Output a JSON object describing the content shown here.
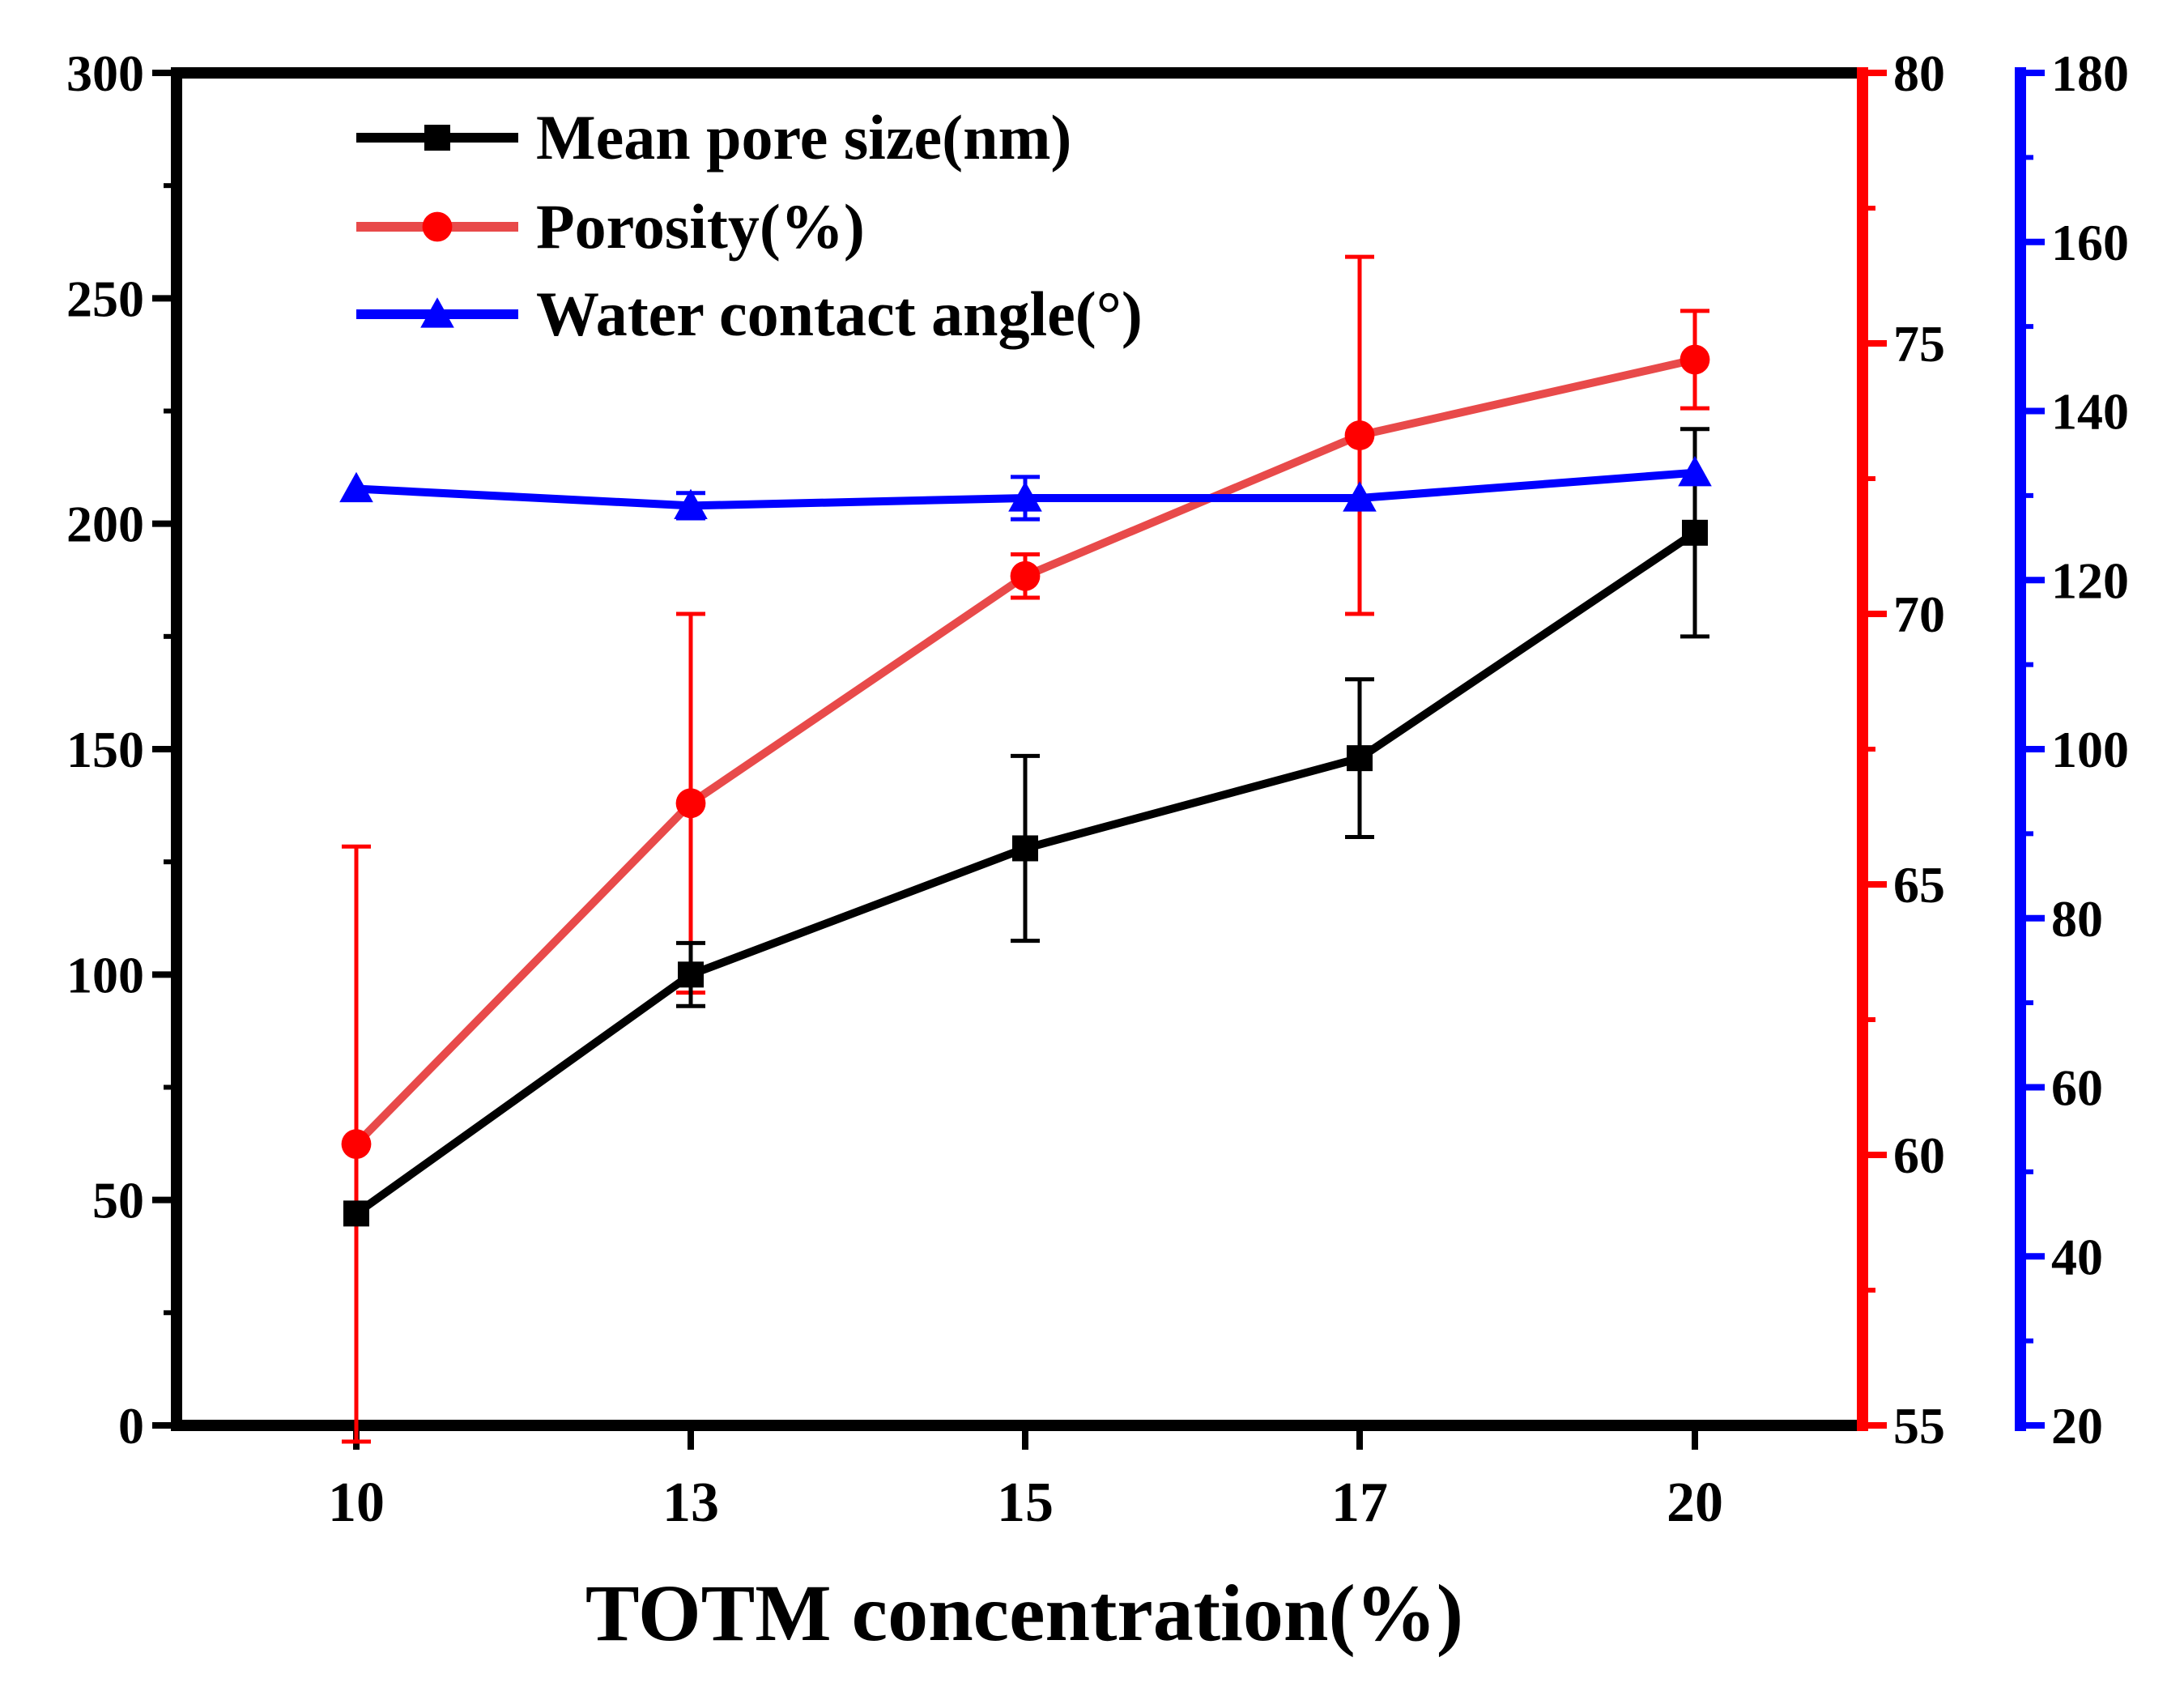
{
  "chart_data": {
    "type": "line",
    "xlabel": "TOTM concentration(%)",
    "categories": [
      "10",
      "13",
      "15",
      "17",
      "20"
    ],
    "x": [
      10,
      13,
      15,
      17,
      20
    ],
    "axes": {
      "left": {
        "ylim": [
          0,
          300
        ],
        "ticks": [
          "0",
          "50",
          "100",
          "150",
          "200",
          "250",
          "300"
        ],
        "color": "#000000"
      },
      "right1": {
        "ylim": [
          55,
          80
        ],
        "ticks": [
          "55",
          "60",
          "65",
          "70",
          "75",
          "80"
        ],
        "color": "#ff0000"
      },
      "right2": {
        "ylim": [
          20,
          180
        ],
        "ticks": [
          "20",
          "40",
          "60",
          "80",
          "100",
          "120",
          "140",
          "160",
          "180"
        ],
        "color": "#0000ff"
      }
    },
    "series": [
      {
        "name": "Mean pore size(nm)",
        "axis": "left",
        "marker": "square",
        "line_color": "#000000",
        "marker_color": "#000000",
        "values": [
          47,
          100,
          128,
          148,
          198
        ],
        "errors": [
          0,
          7,
          20.5,
          17.5,
          23
        ]
      },
      {
        "name": "Porosity(%)",
        "axis": "right1",
        "marker": "circle",
        "line_color": "#e84a4a",
        "marker_color": "#ff0000",
        "values": [
          60.2,
          66.5,
          70.7,
          73.3,
          74.7
        ],
        "errors": [
          5.5,
          3.5,
          0.4,
          3.3,
          0.9
        ]
      },
      {
        "name": "Water contact angle(°)",
        "axis": "right2",
        "marker": "triangle",
        "line_color": "#0000ff",
        "marker_color": "#0000ff",
        "values": [
          130.8,
          128.8,
          129.7,
          129.7,
          132.7
        ],
        "errors": [
          0,
          1.5,
          2.5,
          0,
          0
        ]
      }
    ],
    "legend": "top-left",
    "grid": false
  }
}
